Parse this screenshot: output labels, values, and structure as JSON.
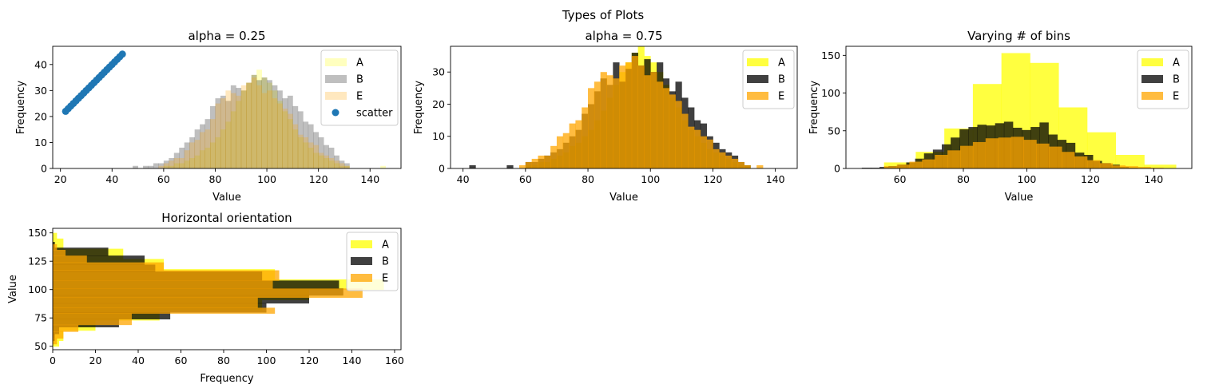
{
  "figure": {
    "suptitle": "Types of Plots"
  },
  "chart_data": [
    {
      "type": "bar",
      "title": "alpha = 0.25",
      "xlabel": "Value",
      "ylabel": "Frequency",
      "xlim": [
        17,
        152
      ],
      "ylim": [
        0,
        47
      ],
      "xticks": [
        20,
        40,
        60,
        80,
        100,
        120,
        140
      ],
      "yticks": [
        0,
        10,
        20,
        30,
        40
      ],
      "grid": false,
      "legend": "top-right",
      "hist_x0": 42,
      "hist_width": 2,
      "series": [
        {
          "name": "A",
          "color": "#ffff00",
          "alpha": 0.25,
          "values": [
            0,
            0,
            0,
            0,
            0,
            0,
            0,
            0,
            0,
            1,
            1,
            2,
            2,
            3,
            4,
            5,
            7,
            8,
            10,
            12,
            15,
            18,
            22,
            26,
            30,
            33,
            36,
            38,
            35,
            33,
            30,
            26,
            22,
            19,
            15,
            12,
            10,
            8,
            6,
            5,
            4,
            3,
            2,
            1,
            1,
            0,
            0,
            0,
            0,
            0,
            0,
            1,
            0
          ]
        },
        {
          "name": "B",
          "color": "#000000",
          "alpha": 0.25,
          "values": [
            0,
            0,
            0,
            1,
            0,
            1,
            1,
            2,
            2,
            3,
            4,
            6,
            8,
            10,
            12,
            15,
            17,
            19,
            24,
            27,
            28,
            26,
            32,
            31,
            30,
            33,
            36,
            34,
            35,
            34,
            32,
            30,
            27,
            28,
            24,
            22,
            18,
            17,
            14,
            12,
            9,
            8,
            5,
            3,
            2,
            0,
            0,
            0,
            0,
            0,
            0,
            0,
            0
          ]
        },
        {
          "name": "E",
          "color": "#ffa500",
          "alpha": 0.25,
          "values": [
            0,
            0,
            0,
            0,
            0,
            0,
            0,
            0,
            1,
            2,
            3,
            4,
            4,
            7,
            10,
            11,
            14,
            15,
            19,
            25,
            27,
            30,
            29,
            28,
            32,
            33,
            35,
            32,
            29,
            30,
            27,
            25,
            23,
            21,
            17,
            13,
            12,
            10,
            9,
            6,
            5,
            4,
            3,
            2,
            1,
            0,
            0,
            0,
            0,
            0,
            0,
            0,
            0
          ]
        },
        {
          "name": "scatter",
          "type": "scatter",
          "color": "#1f77b4",
          "x_start": 22,
          "x_end": 44,
          "slope": 1
        }
      ]
    },
    {
      "type": "bar",
      "title": "alpha = 0.75",
      "xlabel": "Value",
      "ylabel": "Frequency",
      "xlim": [
        36,
        147
      ],
      "ylim": [
        0,
        38
      ],
      "xticks": [
        40,
        60,
        80,
        100,
        120,
        140
      ],
      "yticks": [
        0,
        10,
        20,
        30
      ],
      "grid": false,
      "legend": "top-right",
      "hist_x0": 42,
      "hist_width": 2,
      "series": [
        {
          "name": "A",
          "color": "#ffff00",
          "alpha": 0.75,
          "values": [
            0,
            0,
            0,
            0,
            0,
            0,
            0,
            0,
            0,
            1,
            1,
            2,
            2,
            3,
            4,
            5,
            7,
            8,
            10,
            12,
            15,
            18,
            22,
            26,
            30,
            33,
            36,
            38,
            35,
            33,
            30,
            26,
            22,
            19,
            15,
            12,
            10,
            8,
            6,
            5,
            4,
            3,
            2,
            1,
            1,
            0,
            0,
            0,
            0,
            0,
            0,
            0,
            0
          ]
        },
        {
          "name": "B",
          "color": "#000000",
          "alpha": 0.75,
          "values": [
            1,
            0,
            0,
            0,
            0,
            0,
            1,
            0,
            0,
            2,
            2,
            3,
            4,
            5,
            6,
            8,
            10,
            12,
            17,
            20,
            24,
            28,
            26,
            33,
            27,
            31,
            36,
            32,
            34,
            30,
            33,
            28,
            24,
            27,
            22,
            19,
            15,
            14,
            10,
            8,
            6,
            5,
            4,
            2,
            1,
            0,
            0,
            0,
            0,
            0,
            0,
            0,
            0
          ]
        },
        {
          "name": "E",
          "color": "#ffa500",
          "alpha": 0.75,
          "values": [
            0,
            0,
            0,
            0,
            0,
            0,
            0,
            0,
            1,
            2,
            3,
            4,
            4,
            7,
            10,
            11,
            14,
            15,
            19,
            25,
            27,
            30,
            29,
            28,
            32,
            33,
            35,
            32,
            29,
            30,
            27,
            25,
            23,
            21,
            17,
            13,
            12,
            10,
            9,
            6,
            5,
            4,
            3,
            2,
            1,
            0,
            1,
            0,
            0,
            0,
            0,
            0,
            0
          ]
        }
      ]
    },
    {
      "type": "bar",
      "title": "Varying # of bins",
      "xlabel": "Value",
      "ylabel": "Frequency",
      "xlim": [
        43,
        152
      ],
      "ylim": [
        0,
        162
      ],
      "xticks": [
        60,
        80,
        100,
        120,
        140
      ],
      "yticks": [
        0,
        50,
        100,
        150
      ],
      "grid": false,
      "legend": "top-right",
      "series": [
        {
          "name": "A",
          "color": "#ffff00",
          "alpha": 0.75,
          "edges": [
            55,
            65,
            74,
            83,
            92,
            101,
            110,
            119,
            128,
            137,
            147
          ],
          "values": [
            8,
            22,
            53,
            112,
            153,
            140,
            81,
            48,
            18,
            5
          ]
        },
        {
          "name": "B",
          "color": "#000000",
          "alpha": 0.75,
          "hist_x0": 48,
          "hist_width": 2.8,
          "values": [
            1,
            1,
            2,
            3,
            5,
            8,
            13,
            20,
            25,
            32,
            41,
            52,
            55,
            58,
            57,
            60,
            62,
            54,
            51,
            55,
            61,
            45,
            38,
            34,
            21,
            18,
            10,
            7,
            5,
            2,
            1,
            0,
            0,
            0,
            0
          ]
        },
        {
          "name": "E",
          "color": "#ffa500",
          "alpha": 0.75,
          "hist_x0": 55,
          "hist_width": 4,
          "values": [
            3,
            5,
            9,
            12,
            18,
            24,
            30,
            35,
            40,
            41,
            42,
            38,
            33,
            29,
            22,
            16,
            11,
            7,
            4,
            3,
            2,
            1,
            0
          ]
        }
      ]
    },
    {
      "type": "bar",
      "orientation": "horizontal",
      "title": "Horizontal orientation",
      "xlabel": "Frequency",
      "ylabel": "Value",
      "xlim": [
        0,
        163
      ],
      "ylim": [
        47,
        154
      ],
      "xticks": [
        0,
        20,
        40,
        60,
        80,
        100,
        120,
        140,
        160
      ],
      "yticks": [
        50,
        75,
        100,
        125,
        150
      ],
      "grid": false,
      "legend": "top-right",
      "series": [
        {
          "name": "A",
          "color": "#ffff00",
          "alpha": 0.75,
          "edges": [
            50,
            55,
            64,
            73,
            82,
            91,
            100,
            109,
            118,
            127,
            136,
            145,
            150
          ],
          "values": [
            3,
            5,
            20,
            50,
            98,
            120,
            155,
            104,
            52,
            33,
            5,
            2
          ]
        },
        {
          "name": "B",
          "color": "#000000",
          "alpha": 0.75,
          "edges": [
            55,
            61,
            67,
            74,
            80,
            88,
            95,
            101,
            108,
            116,
            122,
            130,
            137,
            142
          ],
          "values": [
            1,
            3,
            31,
            55,
            100,
            120,
            136,
            134,
            98,
            48,
            43,
            26,
            1
          ]
        },
        {
          "name": "E",
          "color": "#ffa500",
          "alpha": 0.75,
          "edges": [
            52,
            57,
            63,
            69,
            79,
            84,
            93,
            101,
            108,
            117,
            124,
            130,
            135,
            140
          ],
          "values": [
            2,
            5,
            12,
            37,
            104,
            96,
            145,
            103,
            106,
            52,
            16,
            6,
            2
          ]
        }
      ]
    }
  ]
}
